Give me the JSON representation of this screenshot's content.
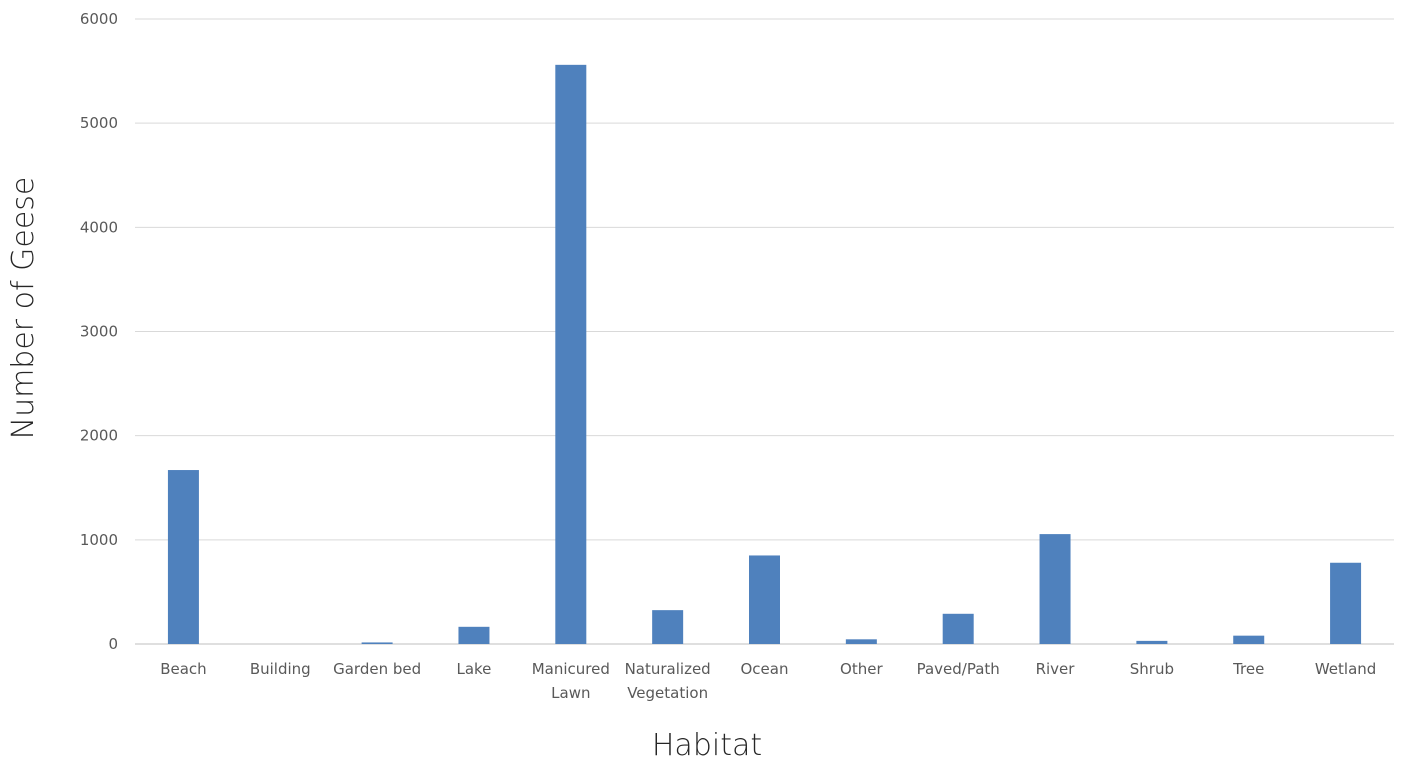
{
  "chart_data": {
    "type": "bar",
    "categories": [
      [
        "Beach"
      ],
      [
        "Building"
      ],
      [
        "Garden bed"
      ],
      [
        "Lake"
      ],
      [
        "Manicured",
        "Lawn"
      ],
      [
        "Naturalized",
        "Vegetation"
      ],
      [
        "Ocean"
      ],
      [
        "Other"
      ],
      [
        "Paved/Path"
      ],
      [
        "River"
      ],
      [
        "Shrub"
      ],
      [
        "Tree"
      ],
      [
        "Wetland"
      ]
    ],
    "values": [
      1670,
      0,
      15,
      165,
      5560,
      325,
      850,
      45,
      290,
      1055,
      30,
      80,
      780
    ],
    "xlabel": "Habitat",
    "ylabel": "Number of Geese",
    "ylim": [
      0,
      6000
    ],
    "yticks": [
      "0",
      "1000",
      "2000",
      "3000",
      "4000",
      "5000",
      "6000"
    ],
    "grid": true,
    "bar_color": "#4f81bd"
  }
}
